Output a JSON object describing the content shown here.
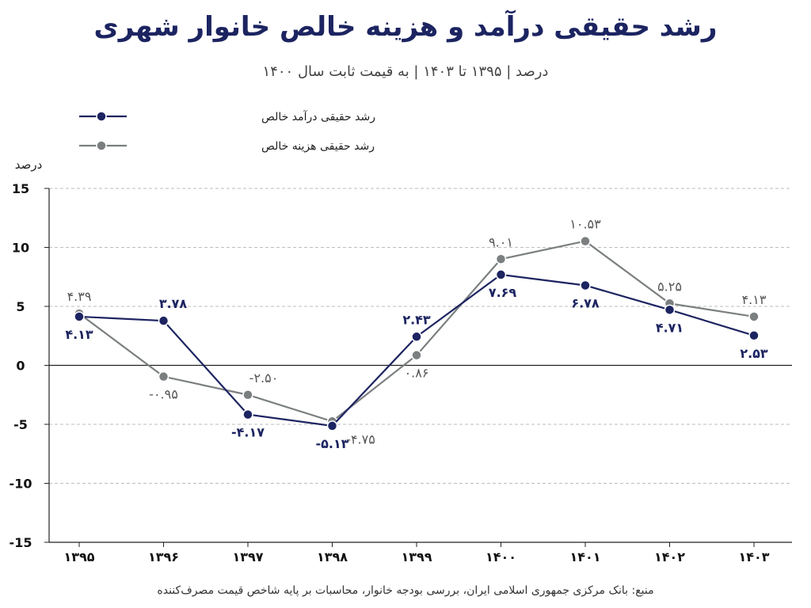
{
  "title": "رشد حقیقی درآمد و هزینه خالص خانوار شهری",
  "subtitle": "درصد | ۱۳۹۵ تا ۱۴۰۳ | به قیمت ثابت سال ۱۴۰۰",
  "footer": "منبع: بانک مرکزی جمهوری اسلامی ایران، بررسی بودجه خانوار، محاسبات بر پایه شاخص قیمت مصرف‌کننده",
  "colors": {
    "income": "#1c2461",
    "expense": "#7b7f80",
    "axis": "#222222",
    "grid": "#bdbdbd"
  },
  "chart_data": {
    "type": "line",
    "categories": [
      "۱۳۹۵",
      "۱۳۹۶",
      "۱۳۹۷",
      "۱۳۹۸",
      "۱۳۹۹",
      "۱۴۰۰",
      "۱۴۰۱",
      "۱۴۰۲",
      "۱۴۰۳"
    ],
    "ylabel": "درصد",
    "ylim": [
      -15,
      15
    ],
    "yticks": [
      15,
      10,
      5,
      0,
      -5,
      -10,
      -15
    ],
    "ytick_labels": [
      "15",
      "10",
      "5",
      "0",
      "-5",
      "-10",
      "-15"
    ],
    "grid": "horizontal-dashed",
    "legend_position": "top-left",
    "series": [
      {
        "name": "رشد حقیقی درآمد خالص",
        "values": [
          4.13,
          3.78,
          -4.17,
          -5.13,
          2.43,
          7.69,
          6.78,
          4.71,
          2.53
        ],
        "labels": [
          "۴.۱۳",
          "۳.۷۸",
          "-۴.۱۷",
          "-۵.۱۳",
          "۲.۴۳",
          "۷.۶۹",
          "۶.۷۸",
          "۴.۷۱",
          "۲.۵۳"
        ]
      },
      {
        "name": "رشد حقیقی هزینه خالص",
        "values": [
          4.39,
          -0.95,
          -2.5,
          -4.75,
          0.86,
          9.01,
          10.53,
          5.25,
          4.13
        ],
        "labels": [
          "۴.۳۹",
          "-۰.۹۵",
          "-۲.۵۰",
          "-۴.۷۵",
          "۰.۸۶",
          "۹.۰۱",
          "۱۰.۵۳",
          "۵.۲۵",
          "۴.۱۳"
        ]
      }
    ]
  }
}
